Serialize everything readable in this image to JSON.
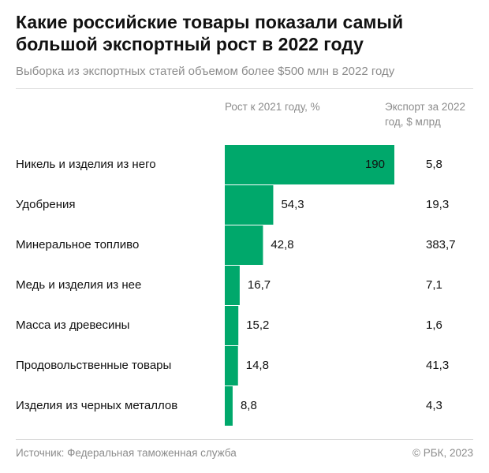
{
  "chart_data": {
    "type": "bar",
    "orientation": "horizontal",
    "title": "Какие российские товары показали самый большой экспортный рост в 2022 году",
    "subtitle": "Выборка из экспортных статей объемом более $500 млн в 2022 году",
    "value_header": "Рост к 2021 году, %",
    "export_header": "Экспорт за 2022 год, $ млрд",
    "categories": [
      "Никель и изделия из него",
      "Удобрения",
      "Минеральное топливо",
      "Медь и изделия из нее",
      "Масса из древесины",
      "Продовольственные товары",
      "Изделия из черных металлов"
    ],
    "values": [
      190,
      54.3,
      42.8,
      16.7,
      15.2,
      14.8,
      8.8
    ],
    "value_labels": [
      "190",
      "54,3",
      "42,8",
      "16,7",
      "15,2",
      "14,8",
      "8,8"
    ],
    "export_values": [
      "5,8",
      "19,3",
      "383,7",
      "7,1",
      "1,6",
      "41,3",
      "4,3"
    ],
    "color": "#00a86b",
    "source": "Источник: Федеральная таможенная служба",
    "copyright": "© РБК, 2023"
  }
}
